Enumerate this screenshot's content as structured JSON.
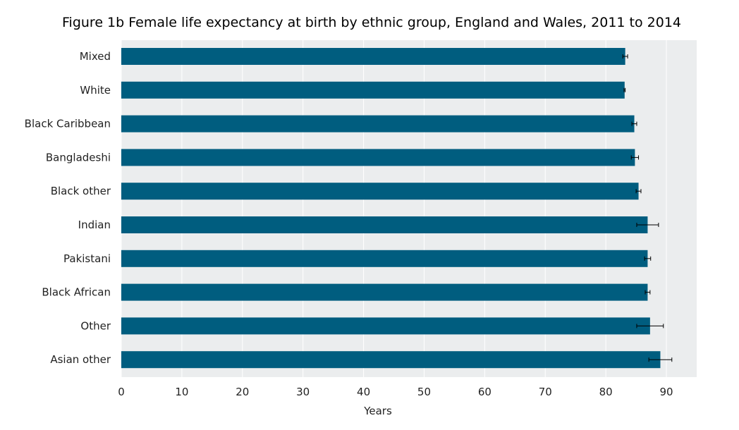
{
  "colors": {
    "bar": "#005d7f",
    "plot_background": "#ebedee",
    "gridline": "#ffffff",
    "error_bar": "#000000"
  },
  "chart_data": {
    "type": "bar",
    "orientation": "horizontal",
    "title": "Figure 1b Female life expectancy at birth by ethnic group, England and Wales, 2011 to 2014",
    "xlabel": "Years",
    "ylabel": "",
    "xlim": [
      0,
      95
    ],
    "xticks": [
      0,
      10,
      20,
      30,
      40,
      50,
      60,
      70,
      80,
      90
    ],
    "grid": true,
    "legend": "none",
    "categories": [
      "Mixed",
      "White",
      "Black Caribbean",
      "Bangladeshi",
      "Black other",
      "Indian",
      "Pakistani",
      "Black African",
      "Other",
      "Asian other"
    ],
    "values": [
      83.2,
      83.1,
      84.7,
      84.8,
      85.4,
      86.9,
      86.9,
      86.9,
      87.3,
      89.0
    ],
    "error_low": [
      82.8,
      83.0,
      84.3,
      84.2,
      85.0,
      85.1,
      86.4,
      86.5,
      85.1,
      87.1
    ],
    "error_high": [
      83.6,
      83.2,
      85.1,
      85.4,
      85.8,
      88.7,
      87.4,
      87.3,
      89.5,
      90.9
    ]
  }
}
